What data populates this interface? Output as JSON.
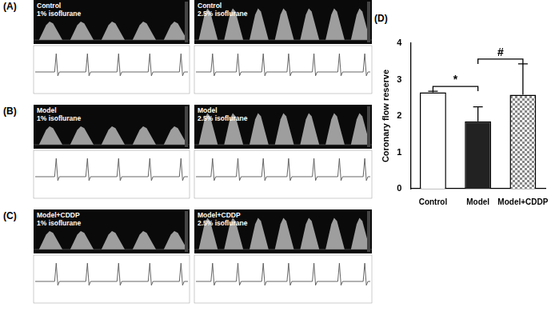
{
  "panels": [
    {
      "letter": "(A)",
      "images": [
        {
          "group": "Control",
          "condition": "1% isoflurane"
        },
        {
          "group": "Control",
          "condition": "2.5% isoflurane"
        }
      ]
    },
    {
      "letter": "(B)",
      "images": [
        {
          "group": "Model",
          "condition": "1% isoflurane"
        },
        {
          "group": "Model",
          "condition": "2.5% isoflurane"
        }
      ]
    },
    {
      "letter": "(C)",
      "images": [
        {
          "group": "Model+CDDP",
          "condition": "1% isoflurane"
        },
        {
          "group": "Model+CDDP",
          "condition": "2.5% isoflurane"
        }
      ]
    }
  ],
  "chart_data": {
    "letter": "(D)",
    "type": "bar",
    "categories": [
      "Control",
      "Model",
      "Model+CDDP"
    ],
    "values": [
      2.65,
      1.85,
      2.58
    ],
    "errors": [
      0.03,
      0.4,
      0.85
    ],
    "colors": [
      "#ffffff",
      "#222222",
      "#888888"
    ],
    "y_label": "Coronary flow reserve",
    "ylim": [
      0,
      4
    ],
    "yticks": [
      0,
      1,
      2,
      3,
      4
    ],
    "grid": false,
    "annotations": [
      {
        "text": "*",
        "from": "Control",
        "to": "Model"
      },
      {
        "text": "#",
        "from": "Model",
        "to": "Model+CDDP"
      }
    ]
  }
}
